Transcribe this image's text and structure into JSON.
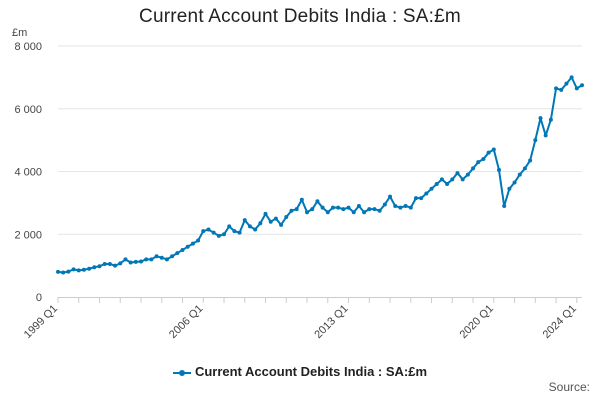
{
  "chart_data": {
    "type": "line",
    "title": "Current Account Debits India : SA:£m",
    "ylabel": "£m",
    "xlabel": "",
    "ylim": [
      0,
      8000
    ],
    "y_ticks": [
      "0",
      "2 000",
      "4 000",
      "6 000",
      "8 000"
    ],
    "y_tick_values": [
      0,
      2000,
      4000,
      6000,
      8000
    ],
    "x_tick_labels": [
      "1999 Q1",
      "2006 Q1",
      "2013 Q1",
      "2020 Q1",
      "2024 Q1"
    ],
    "x_tick_indices": [
      0,
      28,
      56,
      84,
      100
    ],
    "grid": true,
    "legend_position": "bottom",
    "series": [
      {
        "name": "Current Account Debits India : SA:£m",
        "color": "#0077b6",
        "x_start": "1999 Q1",
        "x_end": "2024 Q2",
        "values": [
          800,
          780,
          810,
          880,
          850,
          870,
          900,
          950,
          980,
          1050,
          1050,
          1000,
          1070,
          1200,
          1100,
          1120,
          1130,
          1200,
          1200,
          1300,
          1250,
          1200,
          1300,
          1400,
          1500,
          1600,
          1700,
          1800,
          2100,
          2150,
          2050,
          1950,
          2000,
          2250,
          2100,
          2050,
          2450,
          2250,
          2150,
          2350,
          2650,
          2400,
          2500,
          2300,
          2550,
          2750,
          2800,
          3100,
          2700,
          2800,
          3050,
          2850,
          2700,
          2850,
          2850,
          2800,
          2850,
          2700,
          2900,
          2700,
          2800,
          2800,
          2750,
          2950,
          3200,
          2900,
          2850,
          2900,
          2850,
          3150,
          3150,
          3300,
          3450,
          3600,
          3750,
          3600,
          3750,
          3950,
          3750,
          3900,
          4100,
          4300,
          4400,
          4600,
          4700,
          4050,
          2900,
          3450,
          3650,
          3900,
          4100,
          4350,
          5000,
          5700,
          5150,
          5650,
          6650,
          6600,
          6800,
          7000,
          6650,
          6750
        ]
      }
    ]
  },
  "legend": {
    "label": "Current Account Debits India : SA:£m"
  },
  "source": {
    "label": "Source:"
  }
}
